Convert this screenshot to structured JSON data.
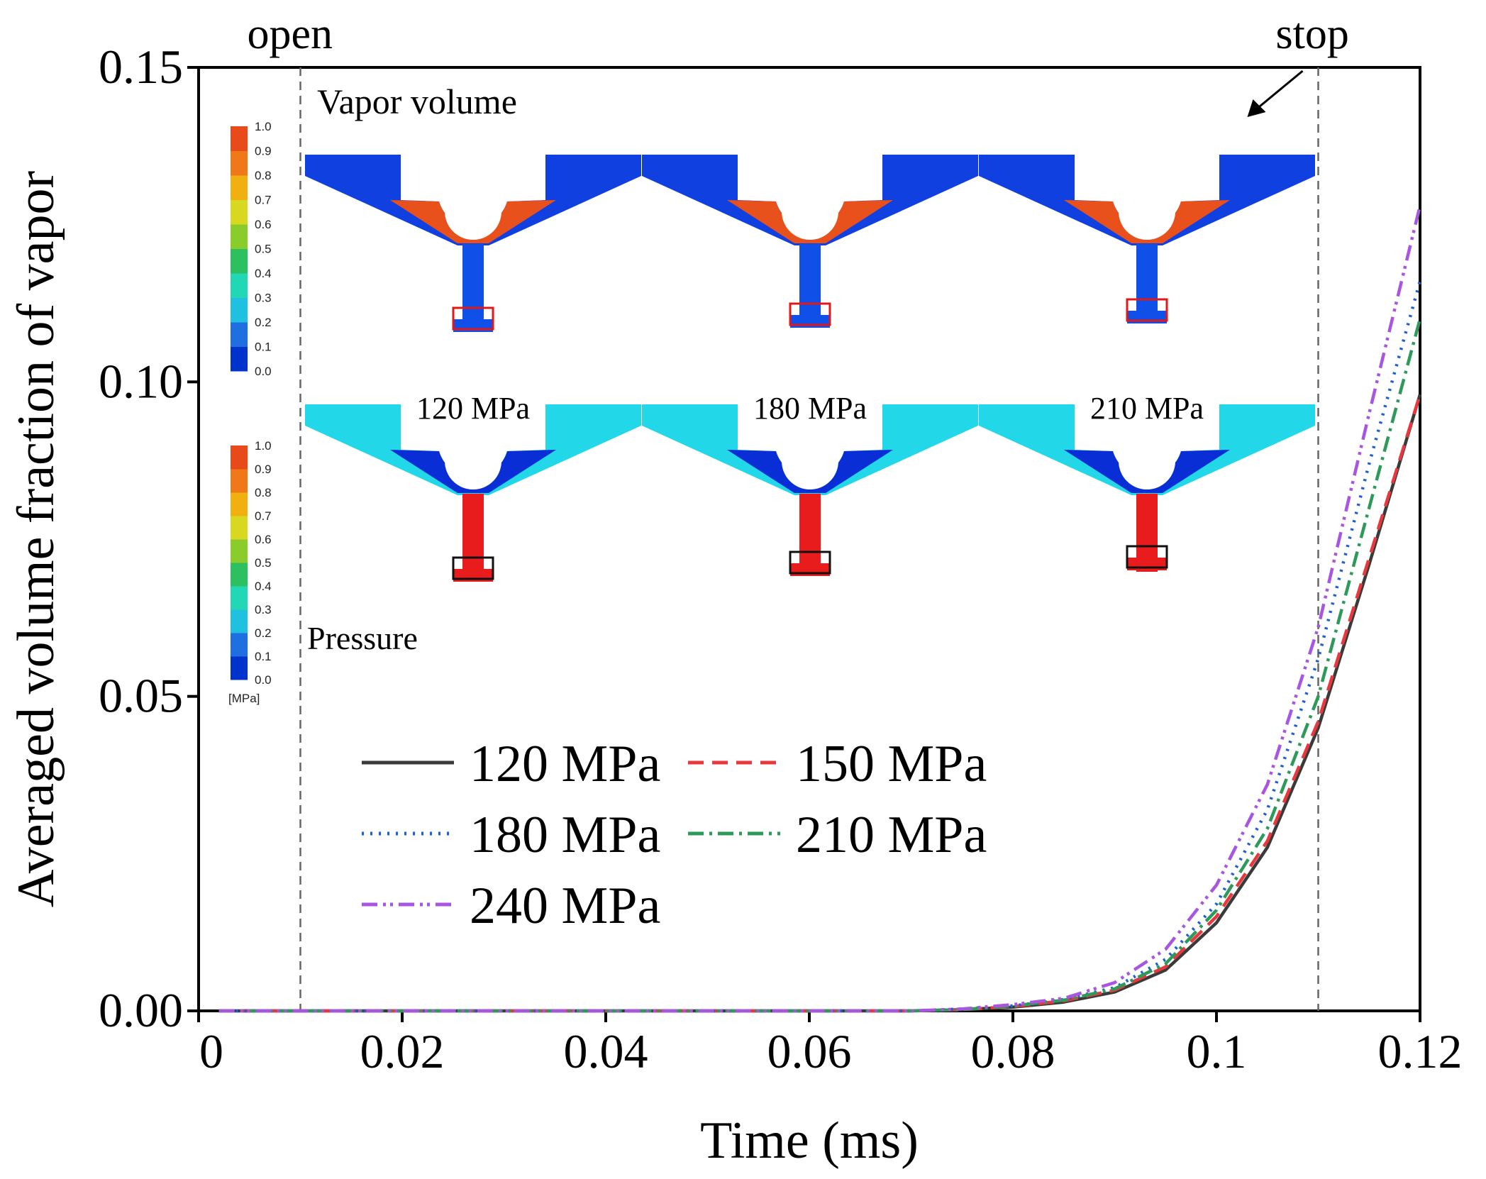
{
  "chart_data": {
    "type": "line",
    "xlabel": "Time (ms)",
    "ylabel": "Averaged volume fraction of vapor",
    "xlim": [
      0,
      0.12
    ],
    "ylim": [
      0,
      0.15
    ],
    "x_ticks": [
      "0",
      "0.02",
      "0.04",
      "0.06",
      "0.08",
      "0.1",
      "0.12"
    ],
    "y_ticks": [
      "0.00",
      "0.05",
      "0.10",
      "0.15"
    ],
    "x_tick_values": [
      0,
      0.02,
      0.04,
      0.06,
      0.08,
      0.1,
      0.12
    ],
    "y_tick_values": [
      0,
      0.05,
      0.1,
      0.15
    ],
    "markers": [
      {
        "label": "open",
        "x": 0.01
      },
      {
        "label": "stop",
        "x": 0.11
      }
    ],
    "x": [
      0.002,
      0.07,
      0.075,
      0.08,
      0.085,
      0.09,
      0.095,
      0.1,
      0.105,
      0.11,
      0.115,
      0.12
    ],
    "series": [
      {
        "name": "120 MPa",
        "color": "#3a3a3a",
        "dash": "",
        "values": [
          0,
          0,
          0.0002,
          0.0006,
          0.0014,
          0.003,
          0.0065,
          0.014,
          0.026,
          0.045,
          0.071,
          0.098
        ]
      },
      {
        "name": "150 MPa",
        "color": "#e8383d",
        "dash": "22,12",
        "values": [
          0,
          0,
          0.0002,
          0.0007,
          0.0016,
          0.0033,
          0.007,
          0.015,
          0.027,
          0.046,
          0.072,
          0.098
        ]
      },
      {
        "name": "180 MPa",
        "color": "#1f5fd6",
        "dash": "3,9",
        "values": [
          0,
          0,
          0.0003,
          0.0008,
          0.0018,
          0.0037,
          0.0082,
          0.017,
          0.032,
          0.056,
          0.087,
          0.116
        ]
      },
      {
        "name": "210 MPa",
        "color": "#2e9a5a",
        "dash": "22,8,4,8",
        "values": [
          0,
          0,
          0.0002,
          0.0008,
          0.0017,
          0.0035,
          0.0075,
          0.016,
          0.029,
          0.05,
          0.08,
          0.11
        ]
      },
      {
        "name": "240 MPa",
        "color": "#a855e0",
        "dash": "22,8,4,6,4,8",
        "values": [
          0,
          0,
          0.0003,
          0.001,
          0.002,
          0.0045,
          0.0098,
          0.02,
          0.036,
          0.061,
          0.095,
          0.128
        ]
      }
    ]
  },
  "inset": {
    "vapor_title": "Vapor volume",
    "pressure_title": "Pressure",
    "scale_ticks": [
      "1.0",
      "0.9",
      "0.8",
      "0.7",
      "0.6",
      "0.5",
      "0.4",
      "0.3",
      "0.2",
      "0.1",
      "0.0"
    ],
    "scale_unit": "[MPa]",
    "case_labels": [
      "120 MPa",
      "180 MPa",
      "210 MPa"
    ],
    "colormap": [
      "#0033cc",
      "#1f6fe0",
      "#20c0e0",
      "#22d8b4",
      "#2cc060",
      "#8acc2c",
      "#d8d820",
      "#f0b010",
      "#f07818",
      "#e84a1a"
    ]
  }
}
